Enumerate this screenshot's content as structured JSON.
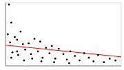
{
  "chart_data": {
    "type": "scatter",
    "xlim": [
      0,
      10
    ],
    "xticks": [
      0,
      1,
      2,
      3,
      4,
      5,
      6,
      7,
      8,
      9,
      10
    ],
    "ylim": [
      0,
      7
    ],
    "yticks": [
      0,
      1,
      2,
      3,
      4,
      5,
      6,
      7
    ],
    "grid": true,
    "tick_labels": false,
    "series": [
      {
        "type": "scatter",
        "color": "#000000",
        "marker": "circle",
        "x": [
          0.2,
          0.3,
          0.4,
          0.5,
          0.6,
          0.8,
          1.0,
          1.1,
          1.3,
          1.5,
          1.7,
          2.0,
          2.2,
          2.5,
          2.8,
          3.0,
          3.2,
          3.5,
          3.8,
          4.0,
          4.3,
          4.6,
          5.0,
          5.3,
          5.6,
          6.0,
          6.4,
          6.8,
          7.2,
          7.6,
          8.0,
          8.5,
          9.0,
          9.5,
          0.5,
          1.0,
          1.6,
          2.3,
          3.1,
          4.2,
          5.5
        ],
        "values": [
          3.5,
          6.8,
          2.6,
          4.8,
          1.5,
          3.2,
          2.9,
          1.2,
          3.8,
          2.4,
          1.8,
          2.5,
          1.3,
          3.0,
          1.6,
          2.7,
          0.9,
          2.0,
          1.4,
          2.2,
          0.8,
          1.9,
          1.3,
          0.7,
          1.6,
          1.1,
          0.6,
          1.4,
          0.9,
          0.5,
          1.2,
          0.4,
          0.8,
          0.6,
          0.9,
          1.6,
          0.6,
          0.8,
          0.5,
          0.4,
          0.3
        ]
      },
      {
        "type": "line",
        "color": "#ff0000",
        "line_style": "solid",
        "x": [
          0,
          10
        ],
        "values": [
          2.3,
          1.0
        ]
      }
    ]
  }
}
